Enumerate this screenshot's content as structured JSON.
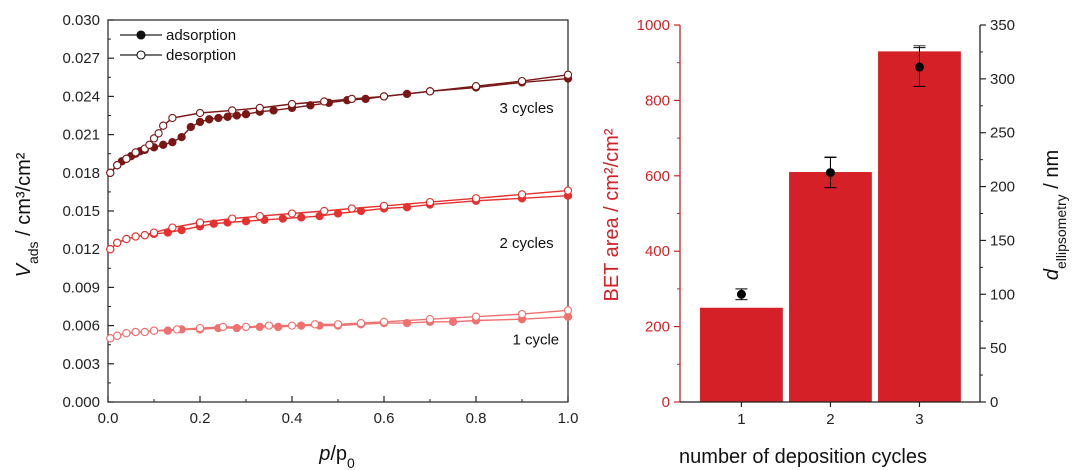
{
  "chart_data": [
    {
      "type": "line",
      "xlabel_italic": "p",
      "xlabel_rest": "/p",
      "xlabel_sub": "0",
      "ylabel_italic": "V",
      "ylabel_sub": "ads",
      "ylabel_rest": " / cm³/cm²",
      "xlim": [
        0.0,
        1.0
      ],
      "ylim": [
        0.0,
        0.03
      ],
      "x_ticks": [
        "0.0",
        "0.2",
        "0.4",
        "0.6",
        "0.8",
        "1.0"
      ],
      "y_ticks": [
        "0.000",
        "0.003",
        "0.006",
        "0.009",
        "0.012",
        "0.015",
        "0.018",
        "0.021",
        "0.024",
        "0.027",
        "0.030"
      ],
      "legend": [
        {
          "label": "adsorption",
          "marker": "filled"
        },
        {
          "label": "desorption",
          "marker": "open"
        }
      ],
      "legend_position": "top-left",
      "series": [
        {
          "label": "1 cycle",
          "color": "#f07070",
          "adsorption": {
            "x": [
              0.005,
              0.02,
              0.04,
              0.06,
              0.08,
              0.1,
              0.13,
              0.16,
              0.2,
              0.24,
              0.28,
              0.33,
              0.37,
              0.42,
              0.46,
              0.5,
              0.55,
              0.6,
              0.65,
              0.7,
              0.75,
              0.8,
              0.9,
              1.0
            ],
            "y": [
              0.005,
              0.0052,
              0.0054,
              0.0055,
              0.0055,
              0.0056,
              0.0056,
              0.0057,
              0.0057,
              0.0058,
              0.0058,
              0.0059,
              0.0059,
              0.006,
              0.006,
              0.006,
              0.0061,
              0.0062,
              0.0062,
              0.0063,
              0.0063,
              0.0064,
              0.0065,
              0.0067
            ]
          },
          "desorption": {
            "x": [
              0.005,
              0.02,
              0.04,
              0.06,
              0.08,
              0.1,
              0.15,
              0.2,
              0.25,
              0.3,
              0.35,
              0.4,
              0.45,
              0.5,
              0.55,
              0.6,
              0.7,
              0.8,
              0.9,
              1.0
            ],
            "y": [
              0.005,
              0.0052,
              0.0054,
              0.0055,
              0.0055,
              0.0056,
              0.0057,
              0.0058,
              0.0059,
              0.0059,
              0.006,
              0.006,
              0.0061,
              0.0061,
              0.0062,
              0.0063,
              0.0065,
              0.0067,
              0.0069,
              0.0072
            ]
          },
          "annotation": "1 cycle",
          "annotation_at": [
            0.93,
            0.0045
          ]
        },
        {
          "label": "2 cycles",
          "color": "#e5312f",
          "adsorption": {
            "x": [
              0.005,
              0.02,
              0.04,
              0.06,
              0.08,
              0.1,
              0.13,
              0.16,
              0.2,
              0.23,
              0.26,
              0.3,
              0.34,
              0.38,
              0.42,
              0.46,
              0.5,
              0.55,
              0.6,
              0.65,
              0.7,
              0.8,
              0.9,
              1.0
            ],
            "y": [
              0.012,
              0.0125,
              0.0128,
              0.013,
              0.0131,
              0.0132,
              0.0133,
              0.0135,
              0.0138,
              0.014,
              0.0141,
              0.0142,
              0.0143,
              0.0144,
              0.0145,
              0.0146,
              0.0148,
              0.015,
              0.0152,
              0.0153,
              0.0155,
              0.0158,
              0.016,
              0.0162
            ]
          },
          "desorption": {
            "x": [
              0.005,
              0.02,
              0.04,
              0.06,
              0.08,
              0.1,
              0.14,
              0.2,
              0.27,
              0.33,
              0.4,
              0.47,
              0.53,
              0.6,
              0.7,
              0.8,
              0.9,
              1.0
            ],
            "y": [
              0.012,
              0.0125,
              0.0128,
              0.013,
              0.0131,
              0.0133,
              0.0137,
              0.0141,
              0.0144,
              0.0146,
              0.0148,
              0.015,
              0.0152,
              0.0154,
              0.0157,
              0.016,
              0.0163,
              0.0166
            ]
          },
          "annotation": "2 cycles",
          "annotation_at": [
            0.91,
            0.0121
          ]
        },
        {
          "label": "3 cycles",
          "color": "#7a1616",
          "adsorption": {
            "x": [
              0.005,
              0.02,
              0.03,
              0.04,
              0.05,
              0.06,
              0.07,
              0.08,
              0.1,
              0.12,
              0.14,
              0.16,
              0.18,
              0.2,
              0.22,
              0.24,
              0.26,
              0.28,
              0.3,
              0.33,
              0.36,
              0.4,
              0.44,
              0.48,
              0.52,
              0.56,
              0.6,
              0.65,
              0.7,
              0.8,
              0.9,
              1.0
            ],
            "y": [
              0.018,
              0.0186,
              0.0189,
              0.0191,
              0.0193,
              0.0195,
              0.0197,
              0.0198,
              0.02,
              0.0202,
              0.0204,
              0.0208,
              0.0216,
              0.022,
              0.0222,
              0.0223,
              0.0224,
              0.0225,
              0.0226,
              0.0228,
              0.0229,
              0.0231,
              0.0233,
              0.0235,
              0.0237,
              0.0238,
              0.024,
              0.0242,
              0.0244,
              0.0247,
              0.0251,
              0.0254
            ]
          },
          "desorption": {
            "x": [
              0.005,
              0.02,
              0.04,
              0.06,
              0.08,
              0.09,
              0.1,
              0.11,
              0.12,
              0.14,
              0.2,
              0.27,
              0.33,
              0.4,
              0.47,
              0.53,
              0.6,
              0.7,
              0.8,
              0.9,
              1.0
            ],
            "y": [
              0.018,
              0.0186,
              0.0191,
              0.0196,
              0.0199,
              0.0202,
              0.0207,
              0.0211,
              0.0217,
              0.0223,
              0.0227,
              0.0229,
              0.0231,
              0.0234,
              0.0236,
              0.0238,
              0.024,
              0.0244,
              0.0248,
              0.0252,
              0.0257
            ]
          },
          "annotation": "3 cycles",
          "annotation_at": [
            0.91,
            0.0227
          ]
        }
      ]
    },
    {
      "type": "bar",
      "categories": [
        "1",
        "2",
        "3"
      ],
      "xlabel": "number of deposition cycles",
      "ylabel_left": "BET area / cm²/cm²",
      "ylabel_right_italic": "d",
      "ylabel_right_sub": "ellipsometry",
      "ylabel_right_rest": " / nm",
      "ylim_left": [
        0,
        1000
      ],
      "ylim_right": [
        0,
        350
      ],
      "y_ticks_left": [
        "0",
        "200",
        "400",
        "600",
        "800",
        "1000"
      ],
      "y_ticks_right": [
        "0",
        "50",
        "100",
        "150",
        "200",
        "250",
        "300",
        "350"
      ],
      "bar_color": "#d42026",
      "left_axis_color": "#d42026",
      "values": [
        250,
        610,
        930
      ],
      "bar_error_upper": [
        0,
        40,
        15
      ],
      "points": {
        "values": [
          100,
          213,
          311
        ],
        "errors": [
          5,
          14,
          18
        ],
        "color": "#000000"
      }
    }
  ]
}
